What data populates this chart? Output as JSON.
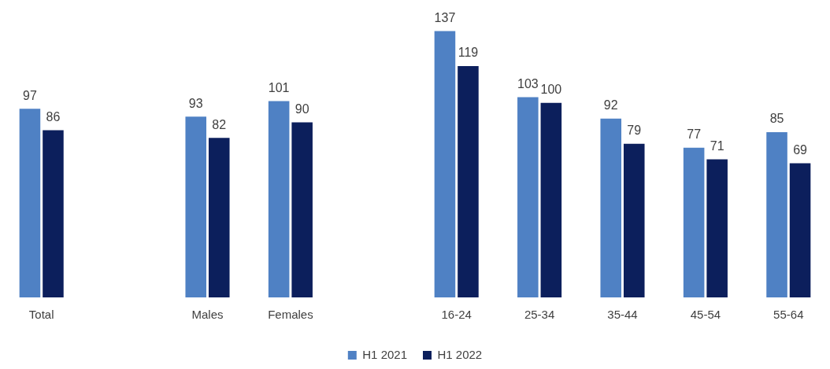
{
  "chart_data": {
    "type": "bar",
    "categories": [
      "Total",
      null,
      "Males",
      "Females",
      null,
      "16-24",
      "25-34",
      "35-44",
      "45-54",
      "55-64"
    ],
    "series": [
      {
        "name": "H1 2021",
        "color": "#4f81c4",
        "values": [
          97,
          null,
          93,
          101,
          null,
          137,
          103,
          92,
          77,
          85
        ]
      },
      {
        "name": "H1 2022",
        "color": "#0c1f5c",
        "values": [
          86,
          null,
          82,
          90,
          null,
          119,
          100,
          79,
          71,
          69
        ]
      }
    ],
    "data_labels": true,
    "legend": "bottom",
    "grid": false
  }
}
